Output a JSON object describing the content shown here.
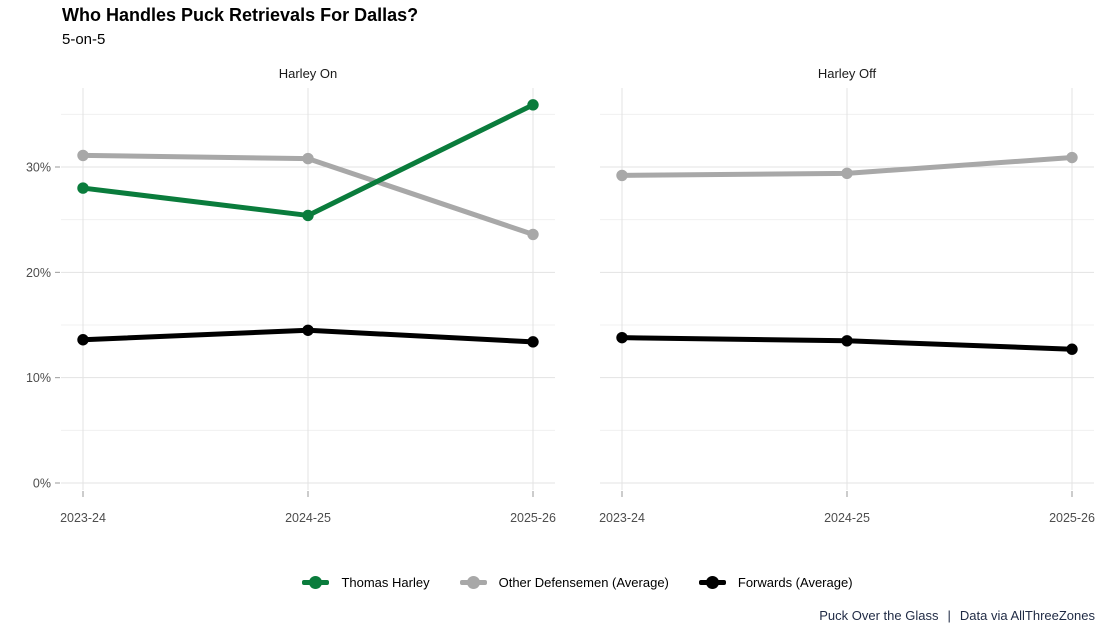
{
  "header": {
    "title": "Who Handles Puck Retrievals For Dallas?",
    "subtitle": "5-on-5"
  },
  "chart_data": {
    "type": "line",
    "categories": [
      "2023-24",
      "2024-25",
      "2025-26"
    ],
    "y_axis": {
      "tick_values": [
        0,
        10,
        20,
        30
      ],
      "tick_labels": [
        "0%",
        "10%",
        "20%",
        "30%"
      ],
      "minor_step": 5,
      "ylim": [
        0,
        37.5
      ],
      "unit": "percent"
    },
    "grid": "on",
    "legend_position": "bottom",
    "panels": [
      {
        "title": "Harley On",
        "series": [
          {
            "name": "Thomas Harley",
            "color": "#0a7c3c",
            "values": [
              28.0,
              25.4,
              35.9
            ]
          },
          {
            "name": "Other Defensemen (Average)",
            "color": "#a8a8a8",
            "values": [
              31.1,
              30.8,
              23.6
            ]
          },
          {
            "name": "Forwards (Average)",
            "color": "#000000",
            "values": [
              13.6,
              14.5,
              13.4
            ]
          }
        ]
      },
      {
        "title": "Harley Off",
        "series": [
          {
            "name": "Other Defensemen (Average)",
            "color": "#a8a8a8",
            "values": [
              29.2,
              29.4,
              30.9
            ]
          },
          {
            "name": "Forwards (Average)",
            "color": "#000000",
            "values": [
              13.8,
              13.5,
              12.7
            ]
          }
        ]
      }
    ],
    "legend": [
      {
        "label": "Thomas Harley",
        "color": "#0a7c3c"
      },
      {
        "label": "Other Defensemen (Average)",
        "color": "#a8a8a8"
      },
      {
        "label": "Forwards (Average)",
        "color": "#000000"
      }
    ]
  },
  "caption": {
    "brand": "Puck Over the Glass",
    "separator": "|",
    "source": "Data via AllThreeZones"
  },
  "style_colors": {
    "grid_major": "#e3e3e3",
    "grid_minor": "#f0f0f0",
    "axis_text": "#4d4d4d",
    "tick": "#9a9a9a",
    "caption_text": "#1f2a44"
  }
}
